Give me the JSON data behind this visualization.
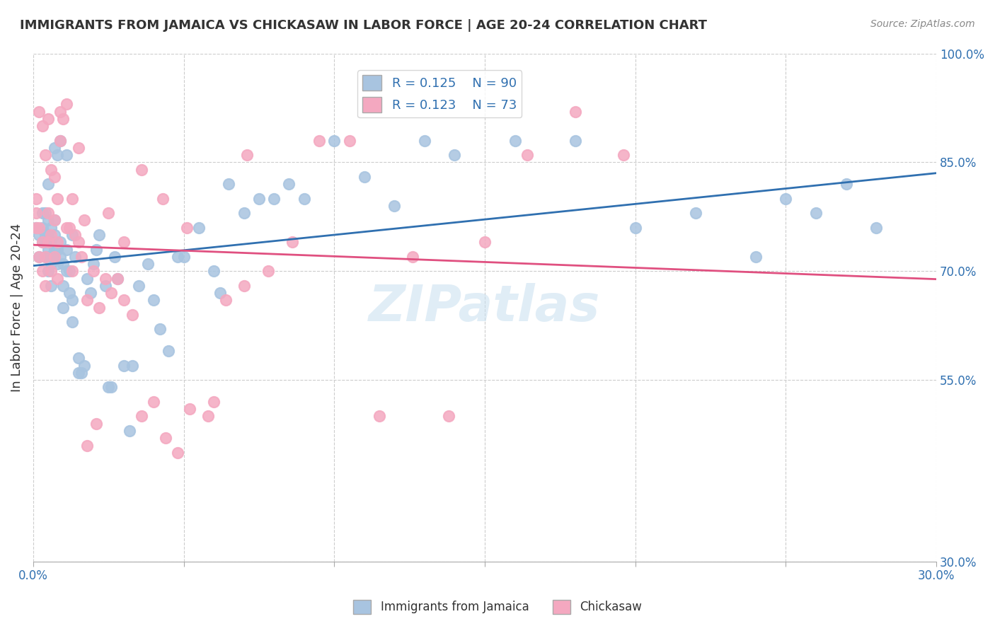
{
  "title": "IMMIGRANTS FROM JAMAICA VS CHICKASAW IN LABOR FORCE | AGE 20-24 CORRELATION CHART",
  "source": "Source: ZipAtlas.com",
  "xlabel": "",
  "ylabel": "In Labor Force | Age 20-24",
  "xlim": [
    0.0,
    0.3
  ],
  "ylim": [
    0.3,
    1.0
  ],
  "xticks": [
    0.0,
    0.05,
    0.1,
    0.15,
    0.2,
    0.25,
    0.3
  ],
  "xticklabels": [
    "0.0%",
    "",
    "",
    "",
    "",
    "",
    "30.0%"
  ],
  "yticks_right": [
    1.0,
    0.85,
    0.7,
    0.55,
    0.3
  ],
  "ytick_labels_right": [
    "100.0%",
    "85.0%",
    "70.0%",
    "55.0%",
    "30.0%"
  ],
  "blue_R": 0.125,
  "blue_N": 90,
  "pink_R": 0.123,
  "pink_N": 73,
  "blue_color": "#a8c4e0",
  "pink_color": "#f4a8c0",
  "blue_line_color": "#3070b0",
  "pink_line_color": "#e05080",
  "legend_label_blue": "Immigrants from Jamaica",
  "legend_label_pink": "Chickasaw",
  "watermark": "ZIPatlas",
  "blue_scatter_x": [
    0.001,
    0.002,
    0.002,
    0.003,
    0.003,
    0.003,
    0.004,
    0.004,
    0.004,
    0.004,
    0.005,
    0.005,
    0.005,
    0.005,
    0.005,
    0.006,
    0.006,
    0.006,
    0.006,
    0.007,
    0.007,
    0.007,
    0.007,
    0.008,
    0.008,
    0.008,
    0.009,
    0.009,
    0.01,
    0.01,
    0.01,
    0.011,
    0.011,
    0.012,
    0.012,
    0.013,
    0.013,
    0.014,
    0.015,
    0.015,
    0.016,
    0.017,
    0.018,
    0.019,
    0.02,
    0.021,
    0.022,
    0.024,
    0.025,
    0.026,
    0.027,
    0.028,
    0.03,
    0.032,
    0.033,
    0.035,
    0.038,
    0.04,
    0.042,
    0.045,
    0.048,
    0.05,
    0.055,
    0.06,
    0.062,
    0.065,
    0.07,
    0.075,
    0.08,
    0.085,
    0.09,
    0.1,
    0.11,
    0.12,
    0.13,
    0.14,
    0.16,
    0.18,
    0.2,
    0.22,
    0.24,
    0.25,
    0.26,
    0.27,
    0.28,
    0.005,
    0.007,
    0.009,
    0.011,
    0.013
  ],
  "blue_scatter_y": [
    0.76,
    0.72,
    0.75,
    0.74,
    0.76,
    0.78,
    0.72,
    0.74,
    0.75,
    0.78,
    0.7,
    0.72,
    0.73,
    0.75,
    0.77,
    0.68,
    0.71,
    0.74,
    0.76,
    0.72,
    0.73,
    0.75,
    0.77,
    0.71,
    0.73,
    0.86,
    0.72,
    0.74,
    0.65,
    0.68,
    0.71,
    0.7,
    0.73,
    0.67,
    0.7,
    0.63,
    0.66,
    0.72,
    0.56,
    0.58,
    0.56,
    0.57,
    0.69,
    0.67,
    0.71,
    0.73,
    0.75,
    0.68,
    0.54,
    0.54,
    0.72,
    0.69,
    0.57,
    0.48,
    0.57,
    0.68,
    0.71,
    0.66,
    0.62,
    0.59,
    0.72,
    0.72,
    0.76,
    0.7,
    0.67,
    0.82,
    0.78,
    0.8,
    0.8,
    0.82,
    0.8,
    0.88,
    0.83,
    0.79,
    0.88,
    0.86,
    0.88,
    0.88,
    0.76,
    0.78,
    0.72,
    0.8,
    0.78,
    0.82,
    0.76,
    0.82,
    0.87,
    0.88,
    0.86,
    0.75
  ],
  "pink_scatter_x": [
    0.001,
    0.001,
    0.002,
    0.002,
    0.003,
    0.003,
    0.004,
    0.004,
    0.005,
    0.005,
    0.006,
    0.006,
    0.007,
    0.007,
    0.008,
    0.008,
    0.009,
    0.01,
    0.011,
    0.012,
    0.013,
    0.014,
    0.015,
    0.016,
    0.017,
    0.018,
    0.02,
    0.022,
    0.024,
    0.026,
    0.028,
    0.03,
    0.033,
    0.036,
    0.04,
    0.044,
    0.048,
    0.052,
    0.058,
    0.064,
    0.07,
    0.078,
    0.086,
    0.095,
    0.105,
    0.115,
    0.126,
    0.138,
    0.15,
    0.164,
    0.18,
    0.196,
    0.001,
    0.002,
    0.003,
    0.004,
    0.005,
    0.006,
    0.007,
    0.008,
    0.009,
    0.011,
    0.013,
    0.015,
    0.018,
    0.021,
    0.025,
    0.03,
    0.036,
    0.043,
    0.051,
    0.06,
    0.071
  ],
  "pink_scatter_y": [
    0.78,
    0.8,
    0.72,
    0.76,
    0.7,
    0.74,
    0.68,
    0.72,
    0.74,
    0.78,
    0.7,
    0.75,
    0.72,
    0.77,
    0.69,
    0.74,
    0.92,
    0.91,
    0.93,
    0.76,
    0.7,
    0.75,
    0.87,
    0.72,
    0.77,
    0.66,
    0.7,
    0.65,
    0.69,
    0.67,
    0.69,
    0.66,
    0.64,
    0.5,
    0.52,
    0.47,
    0.45,
    0.51,
    0.5,
    0.66,
    0.68,
    0.7,
    0.74,
    0.88,
    0.88,
    0.5,
    0.72,
    0.5,
    0.74,
    0.86,
    0.92,
    0.86,
    0.76,
    0.92,
    0.9,
    0.86,
    0.91,
    0.84,
    0.83,
    0.8,
    0.88,
    0.76,
    0.8,
    0.74,
    0.46,
    0.49,
    0.78,
    0.74,
    0.84,
    0.8,
    0.76,
    0.52,
    0.86
  ]
}
